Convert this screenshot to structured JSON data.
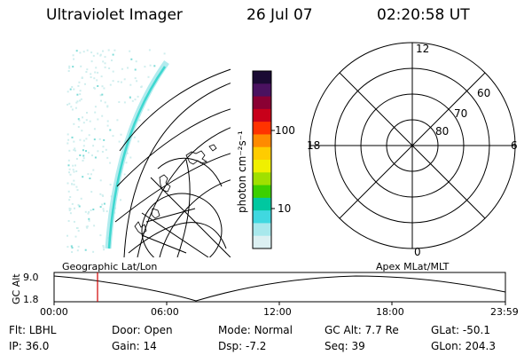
{
  "header": {
    "instrument": "Ultraviolet Imager",
    "date": "26 Jul 07",
    "time": "02:20:58 UT"
  },
  "colorbar": {
    "unit_label": "photon cm⁻²s⁻¹",
    "ticks": [
      "100",
      "10"
    ],
    "colors": [
      "#1a0a33",
      "#4a1260",
      "#8a0033",
      "#c8001a",
      "#ff3300",
      "#ff8a00",
      "#ffcc00",
      "#f0f000",
      "#a0e000",
      "#3cd000",
      "#00c8a0",
      "#40d8e0",
      "#a8e8ec",
      "#dcf0f2"
    ]
  },
  "polar_plot": {
    "mlt_labels": {
      "top": "12",
      "right": "6",
      "left": "18",
      "bottom": "0"
    },
    "lat_labels": [
      "60",
      "70",
      "80"
    ]
  },
  "orbit_panel": {
    "left_label": "Geographic Lat/Lon",
    "right_label": "Apex MLat/MLT",
    "y_axis_label": "GC Alt",
    "y_ticks": [
      "9.0",
      "1.8"
    ],
    "x_ticks": [
      "00:00",
      "06:00",
      "12:00",
      "18:00",
      "23:59"
    ],
    "marker_color": "#d00000"
  },
  "footer": {
    "row1": [
      {
        "key": "Flt:",
        "val": "LBHL"
      },
      {
        "key": "Door:",
        "val": "Open"
      },
      {
        "key": "Mode:",
        "val": "Normal"
      },
      {
        "key": "GC Alt:",
        "val": "7.7 Re"
      },
      {
        "key": "GLat:",
        "val": "-50.1"
      }
    ],
    "row2": [
      {
        "key": "IP:",
        "val": "36.0"
      },
      {
        "key": "Gain:",
        "val": "14"
      },
      {
        "key": "Dsp:",
        "val": "-7.2"
      },
      {
        "key": "Seq:",
        "val": "39"
      },
      {
        "key": "GLon:",
        "val": "204.3"
      }
    ]
  }
}
